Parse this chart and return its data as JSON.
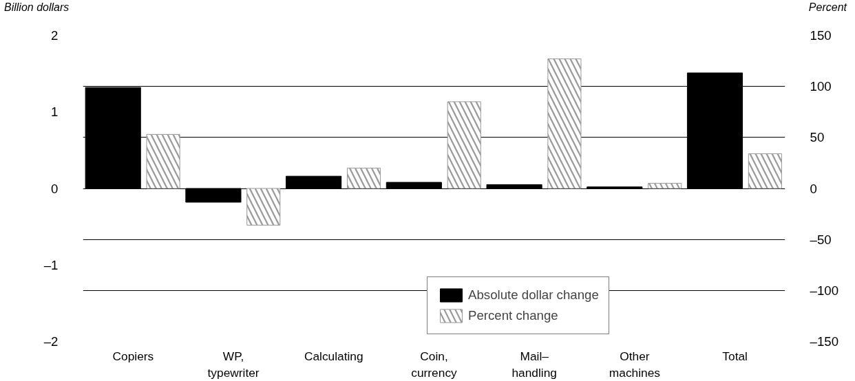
{
  "chart_data": {
    "type": "bar",
    "ylabel": "Billion dollars",
    "y2label": "Percent",
    "categories": [
      "Copiers",
      "WP,\ntypewriter",
      "Calculating",
      "Coin,\ncurrency",
      "Mail–\nhandling",
      "Other\nmachines",
      "Total"
    ],
    "series": [
      {
        "name": "Absolute dollar change",
        "color": "#000000",
        "values": [
          1.32,
          -0.18,
          0.16,
          0.08,
          0.05,
          0.02,
          1.51
        ]
      },
      {
        "name": "Percent change",
        "color": "#999999",
        "axis": "y2",
        "values": [
          53,
          -36,
          20,
          85,
          127,
          5,
          34
        ]
      }
    ],
    "ylim": [
      -2,
      2
    ],
    "yticks": [
      {
        "value": -2,
        "label": "–2"
      },
      {
        "value": -1,
        "label": "–1"
      },
      0,
      1,
      2
    ],
    "y2lim": [
      -150,
      150
    ],
    "y2ticks": [
      {
        "value": -150,
        "label": "–150"
      },
      {
        "value": -100,
        "label": "–100"
      },
      {
        "value": -50,
        "label": "–50"
      },
      0,
      50,
      100,
      150
    ],
    "grid": "y2",
    "legend": "bottom"
  }
}
